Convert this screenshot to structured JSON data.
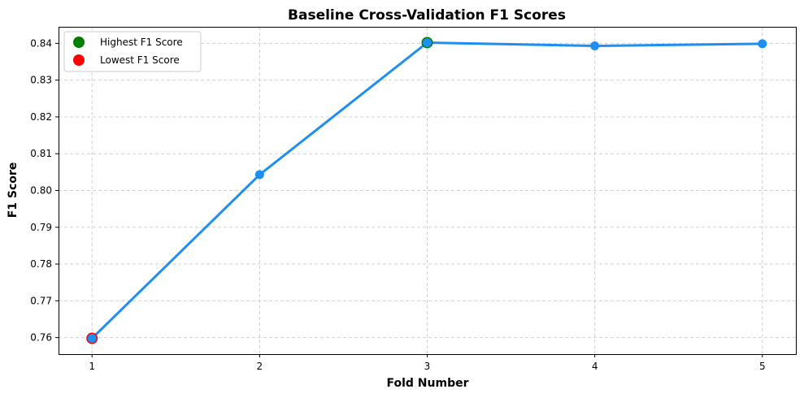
{
  "chart_data": {
    "type": "line",
    "title": "Baseline Cross-Validation F1 Scores",
    "xlabel": "Fold Number",
    "ylabel": "F1 Score",
    "x": [
      1,
      2,
      3,
      4,
      5
    ],
    "xlim": [
      0.8,
      5.2
    ],
    "ylim": [
      0.7555,
      0.8445
    ],
    "xticks": [
      "1",
      "2",
      "3",
      "4",
      "5"
    ],
    "yticks": [
      "0.76",
      "0.77",
      "0.78",
      "0.79",
      "0.80",
      "0.81",
      "0.82",
      "0.83",
      "0.84"
    ],
    "ytick_values": [
      0.76,
      0.77,
      0.78,
      0.79,
      0.8,
      0.81,
      0.82,
      0.83,
      0.84
    ],
    "grid": true,
    "legend_position": "top-left",
    "series": [
      {
        "values": [
          0.7598,
          0.8043,
          0.8402,
          0.8393,
          0.8399
        ],
        "color": "#1E8FF0"
      }
    ],
    "highlights": [
      {
        "name": "Highest F1 Score",
        "x": 3,
        "y": 0.8402,
        "color": "#008000"
      },
      {
        "name": "Lowest F1 Score",
        "x": 1,
        "y": 0.7598,
        "color": "#FF0000"
      }
    ]
  }
}
